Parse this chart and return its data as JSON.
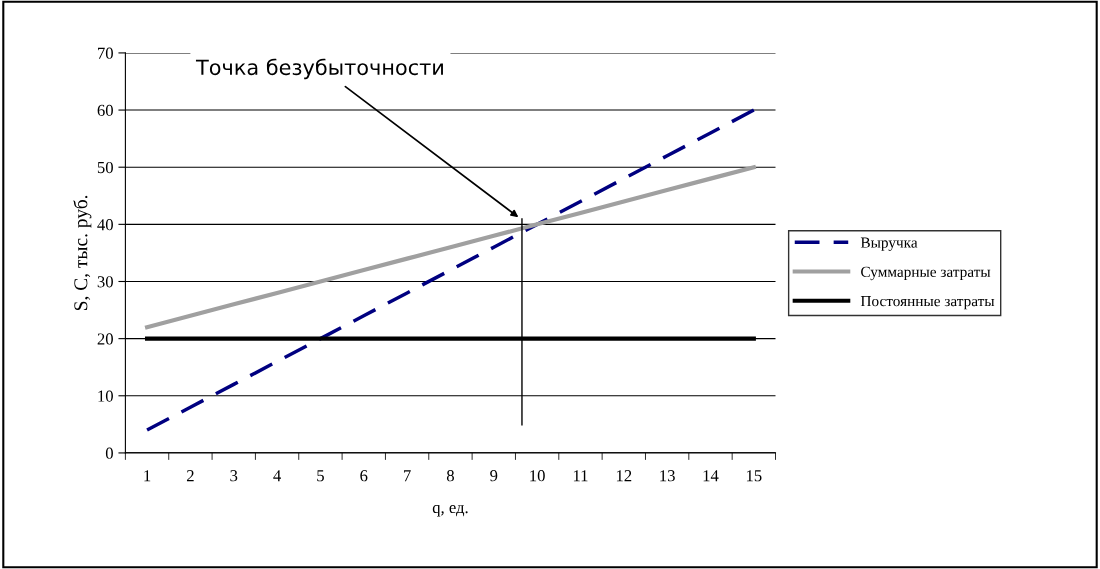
{
  "chart_data": {
    "type": "line",
    "xlabel": "q, ед.",
    "ylabel": "S, C, тыс. руб.",
    "categories": [
      "1",
      "2",
      "3",
      "4",
      "5",
      "6",
      "7",
      "8",
      "9",
      "10",
      "11",
      "12",
      "13",
      "14",
      "15"
    ],
    "series": [
      {
        "name": "Выручка",
        "color": "#000080",
        "line_style": "dashed",
        "values": [
          4,
          8,
          12,
          16,
          20,
          24,
          28,
          32,
          36,
          40,
          44,
          48,
          52,
          56,
          60
        ]
      },
      {
        "name": "Суммарные затраты",
        "color": "#a0a0a0",
        "line_style": "solid",
        "values": [
          22,
          24,
          26,
          28,
          30,
          32,
          34,
          36,
          38,
          40,
          42,
          44,
          46,
          48,
          50
        ]
      },
      {
        "name": "Постоянные затраты",
        "color": "#000000",
        "line_style": "solid",
        "values": [
          20,
          20,
          20,
          20,
          20,
          20,
          20,
          20,
          20,
          20,
          20,
          20,
          20,
          20,
          20
        ]
      }
    ],
    "ylim": [
      0,
      70
    ],
    "yticks": [
      0,
      10,
      20,
      30,
      40,
      50,
      60,
      70
    ],
    "grid": "y",
    "legend": "right",
    "marker": "none",
    "annotations": [
      "Точка безубыточности"
    ]
  }
}
